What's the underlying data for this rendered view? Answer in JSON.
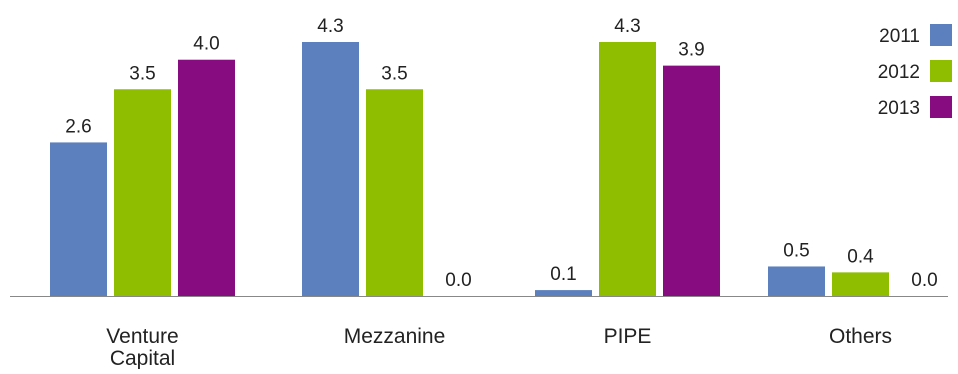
{
  "chart_data": {
    "type": "bar",
    "categories": [
      "Venture Capital",
      "Mezzanine",
      "PIPE",
      "Others"
    ],
    "category_lines": [
      [
        "Venture",
        "Capital"
      ],
      [
        "Mezzanine"
      ],
      [
        "PIPE"
      ],
      [
        "Others"
      ]
    ],
    "series": [
      {
        "name": "2011",
        "color": "#5b80bd",
        "values": [
          2.6,
          4.3,
          0.1,
          0.5
        ]
      },
      {
        "name": "2012",
        "color": "#8fbd00",
        "values": [
          3.5,
          3.5,
          4.3,
          0.4
        ]
      },
      {
        "name": "2013",
        "color": "#870c80",
        "values": [
          4.0,
          0.0,
          3.9,
          0.0
        ]
      }
    ],
    "value_labels": [
      [
        "2.6",
        "4.3",
        "0.1",
        "0.5"
      ],
      [
        "3.5",
        "3.5",
        "4.3",
        "0.4"
      ],
      [
        "4.0",
        "0.0",
        "3.9",
        "0.0"
      ]
    ],
    "ylim": [
      0,
      4.3
    ],
    "grid": false,
    "legend_position": "top-right",
    "axis_color": "#888888"
  }
}
